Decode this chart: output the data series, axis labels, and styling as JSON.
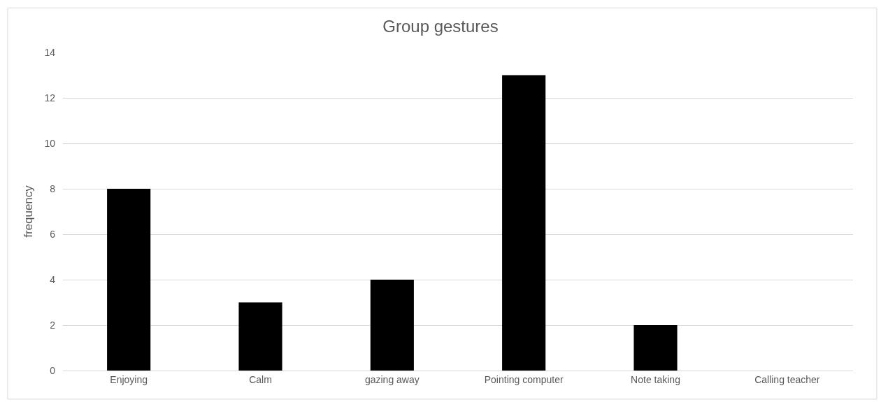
{
  "chart_data": {
    "type": "bar",
    "title": "Group gestures",
    "ylabel": "frequency",
    "categories": [
      "Enjoying",
      "Calm",
      "gazing away",
      "Pointing computer",
      "Note taking",
      "Calling teacher"
    ],
    "values": [
      8,
      3,
      4,
      13,
      2,
      0
    ],
    "color": "#000000",
    "ylim": [
      0,
      14
    ],
    "yticks": [
      0,
      2,
      4,
      6,
      8,
      10,
      12,
      14
    ],
    "grid": "y"
  }
}
